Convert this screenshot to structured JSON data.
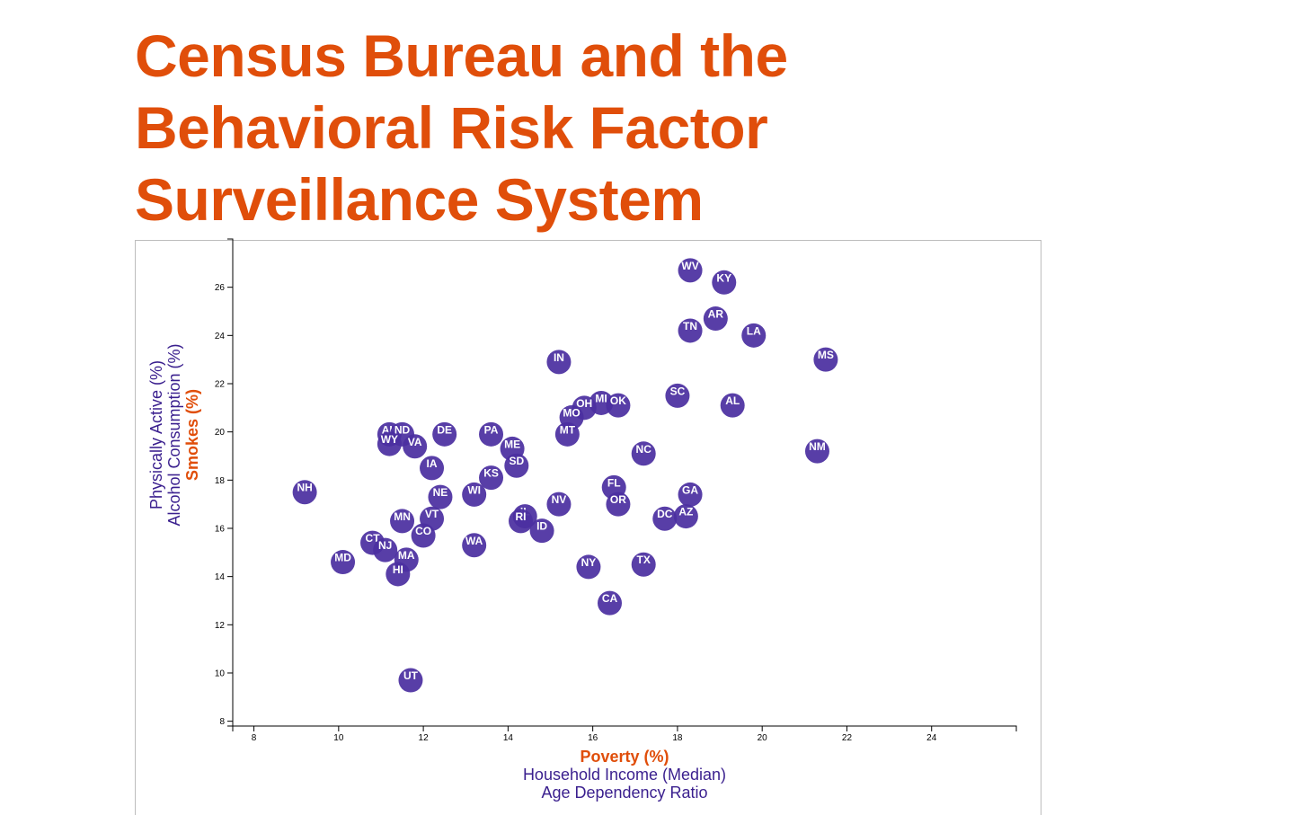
{
  "title": "Census Bureau and the Behavioral Risk Factor Surveillance System",
  "colors": {
    "title": "#e04e0a",
    "active_axis": "#e04e0a",
    "inactive_axis": "#3a1f8e",
    "marker": "#4b2fa0",
    "marker_text": "#ffffff"
  },
  "chart_data": {
    "type": "scatter",
    "title": "",
    "x_axis_options": [
      "Poverty (%)",
      "Household Income (Median)",
      "Age Dependency Ratio"
    ],
    "y_axis_options": [
      "Smokes (%)",
      "Alcohol Consumption (%)",
      "Physically Active (%)"
    ],
    "active_x": "Poverty (%)",
    "active_y": "Smokes (%)",
    "xlim": [
      7.5,
      26
    ],
    "ylim": [
      7.8,
      28
    ],
    "x_ticks": [
      8,
      10,
      12,
      14,
      16,
      18,
      20,
      22,
      24
    ],
    "y_ticks": [
      8,
      10,
      12,
      14,
      16,
      18,
      20,
      22,
      24,
      26
    ],
    "grid": false,
    "points": [
      {
        "label": "WV",
        "x": 18.3,
        "y": 26.7
      },
      {
        "label": "KY",
        "x": 19.1,
        "y": 26.2
      },
      {
        "label": "AR",
        "x": 18.9,
        "y": 24.7
      },
      {
        "label": "TN",
        "x": 18.3,
        "y": 24.2
      },
      {
        "label": "LA",
        "x": 19.8,
        "y": 24.0
      },
      {
        "label": "MS",
        "x": 21.5,
        "y": 23.0
      },
      {
        "label": "IN",
        "x": 15.2,
        "y": 22.9
      },
      {
        "label": "SC",
        "x": 18.0,
        "y": 21.5
      },
      {
        "label": "AL",
        "x": 19.3,
        "y": 21.1
      },
      {
        "label": "MI",
        "x": 16.2,
        "y": 21.2
      },
      {
        "label": "OK",
        "x": 16.6,
        "y": 21.1
      },
      {
        "label": "OH",
        "x": 15.8,
        "y": 21.0
      },
      {
        "label": "MO",
        "x": 15.5,
        "y": 20.6
      },
      {
        "label": "MT",
        "x": 15.4,
        "y": 19.9
      },
      {
        "label": "NM",
        "x": 21.3,
        "y": 19.2
      },
      {
        "label": "NC",
        "x": 17.2,
        "y": 19.1
      },
      {
        "label": "AK",
        "x": 11.2,
        "y": 19.9
      },
      {
        "label": "ND",
        "x": 11.5,
        "y": 19.9
      },
      {
        "label": "WY",
        "x": 11.2,
        "y": 19.5
      },
      {
        "label": "VA",
        "x": 11.8,
        "y": 19.4
      },
      {
        "label": "DE",
        "x": 12.5,
        "y": 19.9
      },
      {
        "label": "PA",
        "x": 13.6,
        "y": 19.9
      },
      {
        "label": "ME",
        "x": 14.1,
        "y": 19.3
      },
      {
        "label": "SD",
        "x": 14.2,
        "y": 18.6
      },
      {
        "label": "IA",
        "x": 12.2,
        "y": 18.5
      },
      {
        "label": "KS",
        "x": 13.6,
        "y": 18.1
      },
      {
        "label": "NH",
        "x": 9.2,
        "y": 17.5
      },
      {
        "label": "FL",
        "x": 16.5,
        "y": 17.7
      },
      {
        "label": "GA",
        "x": 18.3,
        "y": 17.4
      },
      {
        "label": "WI",
        "x": 13.2,
        "y": 17.4
      },
      {
        "label": "NE",
        "x": 12.4,
        "y": 17.3
      },
      {
        "label": "OR",
        "x": 16.6,
        "y": 17.0
      },
      {
        "label": "NV",
        "x": 15.2,
        "y": 17.0
      },
      {
        "label": "DC",
        "x": 17.7,
        "y": 16.4
      },
      {
        "label": "AZ",
        "x": 18.2,
        "y": 16.5
      },
      {
        "label": "IL",
        "x": 14.4,
        "y": 16.5
      },
      {
        "label": "RI",
        "x": 14.3,
        "y": 16.3
      },
      {
        "label": "VT",
        "x": 12.2,
        "y": 16.4
      },
      {
        "label": "MN",
        "x": 11.5,
        "y": 16.3
      },
      {
        "label": "ID",
        "x": 14.8,
        "y": 15.9
      },
      {
        "label": "CO",
        "x": 12.0,
        "y": 15.7
      },
      {
        "label": "CT",
        "x": 10.8,
        "y": 15.4
      },
      {
        "label": "NJ",
        "x": 11.1,
        "y": 15.1
      },
      {
        "label": "WA",
        "x": 13.2,
        "y": 15.3
      },
      {
        "label": "MD",
        "x": 10.1,
        "y": 14.6
      },
      {
        "label": "MA",
        "x": 11.6,
        "y": 14.7
      },
      {
        "label": "HI",
        "x": 11.4,
        "y": 14.1
      },
      {
        "label": "NY",
        "x": 15.9,
        "y": 14.4
      },
      {
        "label": "TX",
        "x": 17.2,
        "y": 14.5
      },
      {
        "label": "CA",
        "x": 16.4,
        "y": 12.9
      },
      {
        "label": "UT",
        "x": 11.7,
        "y": 9.7
      }
    ]
  }
}
